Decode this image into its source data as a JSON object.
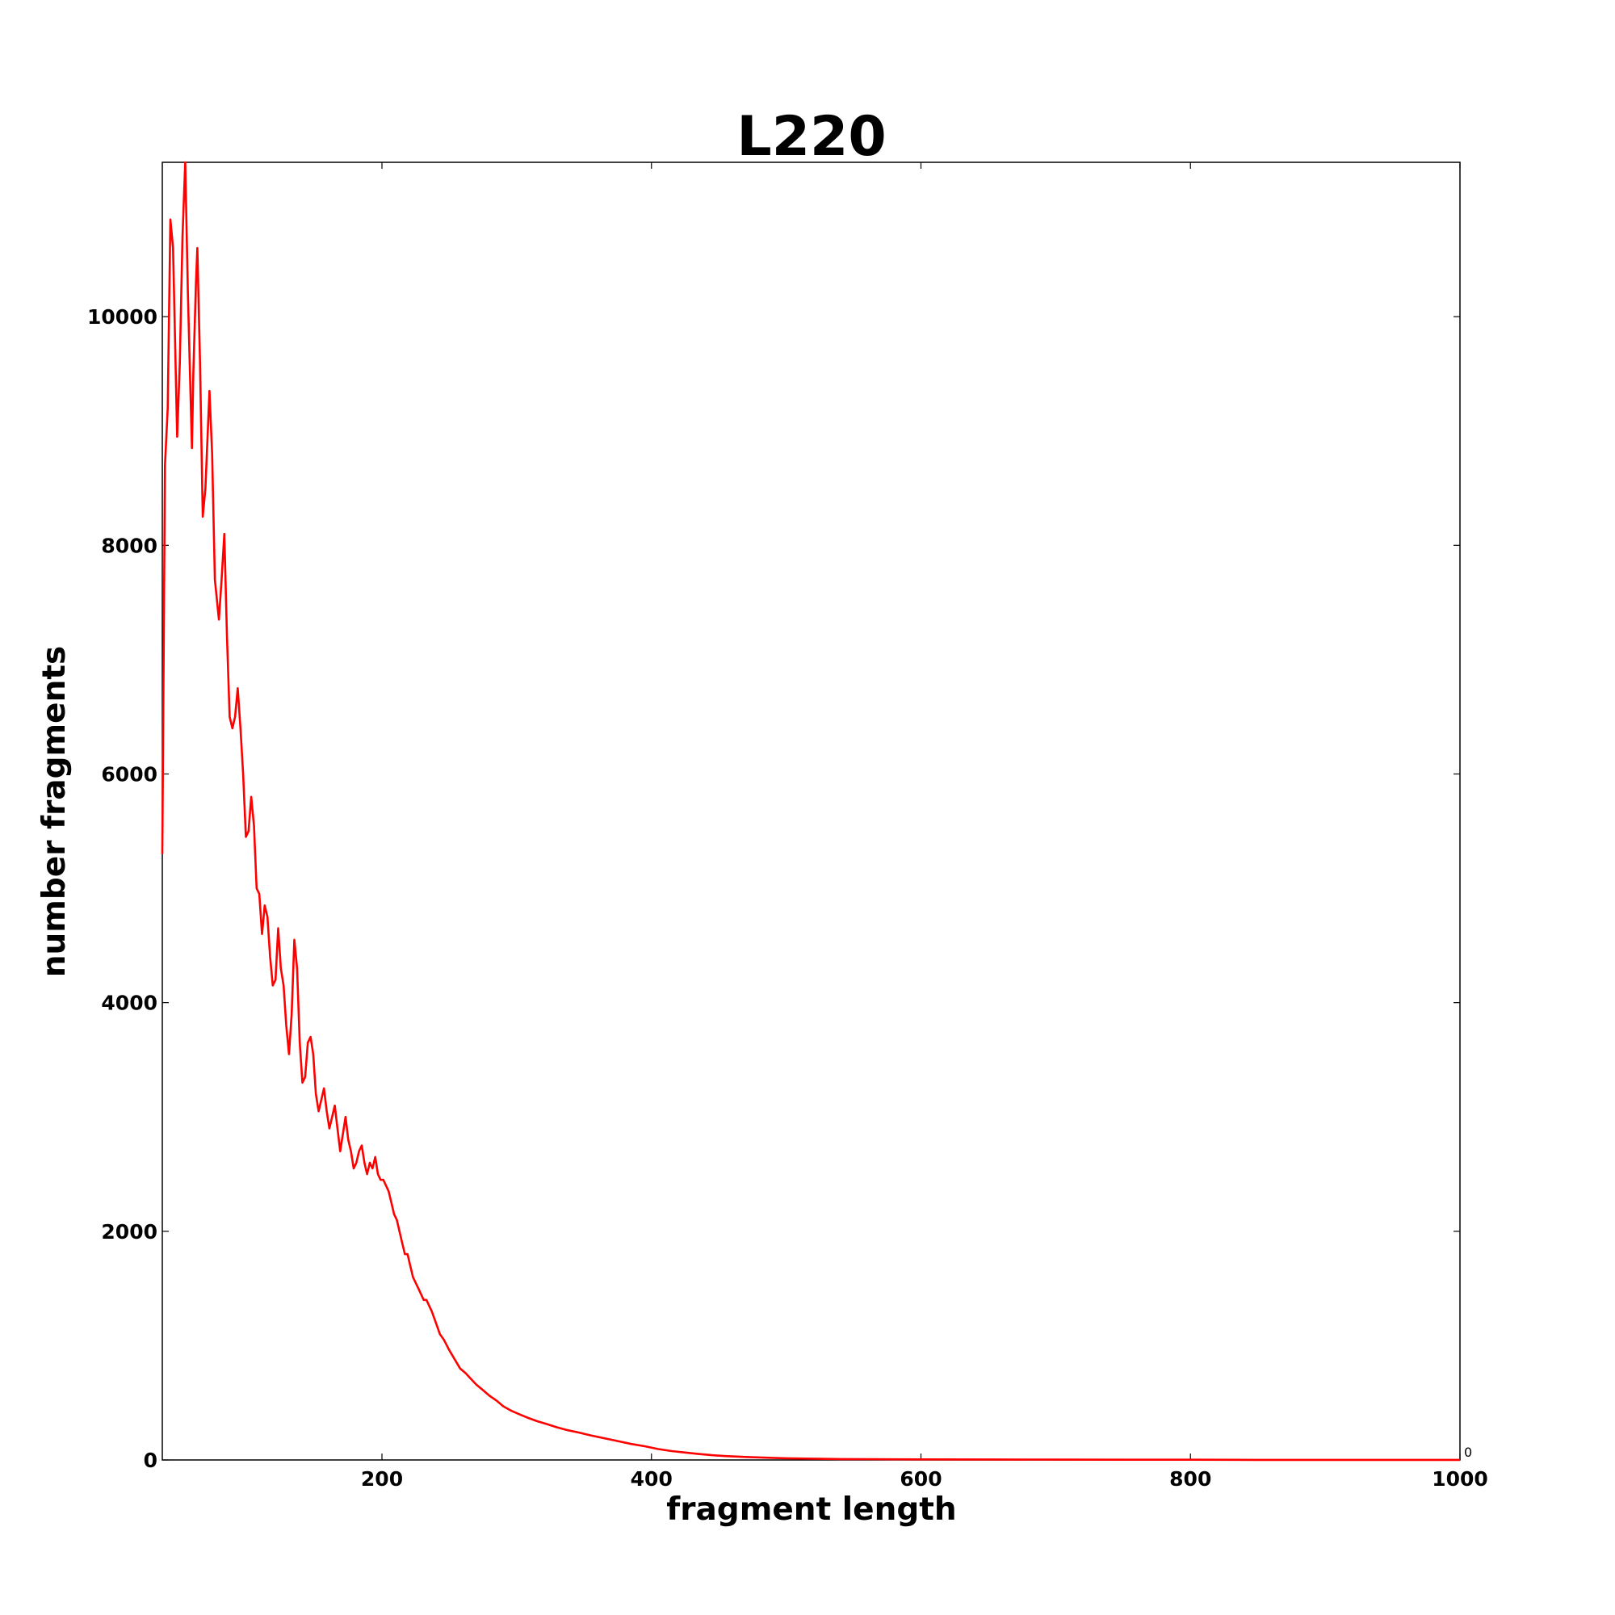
{
  "chart_data": {
    "type": "line",
    "title": "L220",
    "xlabel": "fragment length",
    "ylabel": "number fragments",
    "xlim": [
      37,
      1000
    ],
    "ylim": [
      0,
      11350
    ],
    "xticks": [
      200,
      400,
      600,
      800,
      1000
    ],
    "yticks": [
      0,
      2000,
      4000,
      6000,
      8000,
      10000
    ],
    "xtick_labels": [
      "200",
      "400",
      "600",
      "800",
      "1000"
    ],
    "ytick_labels": [
      "0",
      "2000",
      "4000",
      "6000",
      "8000",
      "10000"
    ],
    "corner_label": "0",
    "grid": false,
    "legend": "none",
    "color": "#ff0000",
    "series": [
      {
        "points": [
          [
            37,
            5300
          ],
          [
            39,
            8700
          ],
          [
            41,
            9200
          ],
          [
            43,
            10850
          ],
          [
            45,
            10600
          ],
          [
            48,
            8950
          ],
          [
            50,
            9600
          ],
          [
            52,
            10700
          ],
          [
            54,
            11350
          ],
          [
            56,
            10200
          ],
          [
            59,
            8850
          ],
          [
            60,
            9500
          ],
          [
            62,
            10300
          ],
          [
            63,
            10600
          ],
          [
            65,
            9600
          ],
          [
            67,
            8250
          ],
          [
            69,
            8500
          ],
          [
            72,
            9350
          ],
          [
            74,
            8800
          ],
          [
            76,
            7700
          ],
          [
            79,
            7350
          ],
          [
            81,
            7700
          ],
          [
            83,
            8100
          ],
          [
            85,
            7200
          ],
          [
            87,
            6500
          ],
          [
            89,
            6400
          ],
          [
            91,
            6500
          ],
          [
            93,
            6750
          ],
          [
            95,
            6400
          ],
          [
            97,
            6000
          ],
          [
            99,
            5450
          ],
          [
            101,
            5500
          ],
          [
            103,
            5800
          ],
          [
            105,
            5550
          ],
          [
            107,
            5000
          ],
          [
            109,
            4950
          ],
          [
            111,
            4600
          ],
          [
            113,
            4850
          ],
          [
            115,
            4750
          ],
          [
            117,
            4400
          ],
          [
            119,
            4150
          ],
          [
            121,
            4200
          ],
          [
            123,
            4650
          ],
          [
            125,
            4300
          ],
          [
            127,
            4150
          ],
          [
            129,
            3800
          ],
          [
            131,
            3550
          ],
          [
            133,
            3900
          ],
          [
            135,
            4550
          ],
          [
            137,
            4300
          ],
          [
            139,
            3650
          ],
          [
            141,
            3300
          ],
          [
            143,
            3350
          ],
          [
            145,
            3650
          ],
          [
            147,
            3700
          ],
          [
            149,
            3550
          ],
          [
            151,
            3200
          ],
          [
            153,
            3050
          ],
          [
            155,
            3150
          ],
          [
            157,
            3250
          ],
          [
            159,
            3050
          ],
          [
            161,
            2900
          ],
          [
            163,
            3000
          ],
          [
            165,
            3100
          ],
          [
            167,
            2900
          ],
          [
            169,
            2700
          ],
          [
            171,
            2850
          ],
          [
            173,
            3000
          ],
          [
            175,
            2800
          ],
          [
            177,
            2700
          ],
          [
            179,
            2550
          ],
          [
            181,
            2600
          ],
          [
            183,
            2700
          ],
          [
            185,
            2750
          ],
          [
            187,
            2600
          ],
          [
            189,
            2500
          ],
          [
            191,
            2600
          ],
          [
            193,
            2550
          ],
          [
            195,
            2650
          ],
          [
            197,
            2500
          ],
          [
            199,
            2450
          ],
          [
            201,
            2450
          ],
          [
            203,
            2400
          ],
          [
            205,
            2350
          ],
          [
            207,
            2250
          ],
          [
            209,
            2150
          ],
          [
            211,
            2100
          ],
          [
            213,
            2000
          ],
          [
            215,
            1900
          ],
          [
            217,
            1800
          ],
          [
            219,
            1800
          ],
          [
            221,
            1700
          ],
          [
            223,
            1600
          ],
          [
            225,
            1550
          ],
          [
            227,
            1500
          ],
          [
            229,
            1450
          ],
          [
            231,
            1400
          ],
          [
            233,
            1400
          ],
          [
            235,
            1350
          ],
          [
            237,
            1300
          ],
          [
            240,
            1200
          ],
          [
            243,
            1100
          ],
          [
            246,
            1050
          ],
          [
            250,
            960
          ],
          [
            254,
            880
          ],
          [
            258,
            800
          ],
          [
            262,
            760
          ],
          [
            266,
            710
          ],
          [
            270,
            660
          ],
          [
            275,
            610
          ],
          [
            280,
            560
          ],
          [
            285,
            520
          ],
          [
            290,
            470
          ],
          [
            296,
            430
          ],
          [
            302,
            400
          ],
          [
            308,
            370
          ],
          [
            315,
            340
          ],
          [
            322,
            315
          ],
          [
            330,
            285
          ],
          [
            338,
            260
          ],
          [
            346,
            240
          ],
          [
            355,
            215
          ],
          [
            365,
            190
          ],
          [
            375,
            165
          ],
          [
            385,
            140
          ],
          [
            395,
            120
          ],
          [
            405,
            95
          ],
          [
            415,
            78
          ],
          [
            425,
            65
          ],
          [
            435,
            52
          ],
          [
            445,
            42
          ],
          [
            455,
            34
          ],
          [
            470,
            26
          ],
          [
            485,
            20
          ],
          [
            500,
            15
          ],
          [
            520,
            11
          ],
          [
            540,
            8
          ],
          [
            560,
            7
          ],
          [
            580,
            6
          ],
          [
            600,
            5
          ],
          [
            650,
            4
          ],
          [
            700,
            3
          ],
          [
            750,
            2
          ],
          [
            800,
            2
          ],
          [
            850,
            1
          ],
          [
            900,
            1
          ],
          [
            950,
            1
          ],
          [
            1000,
            1
          ]
        ]
      }
    ]
  }
}
